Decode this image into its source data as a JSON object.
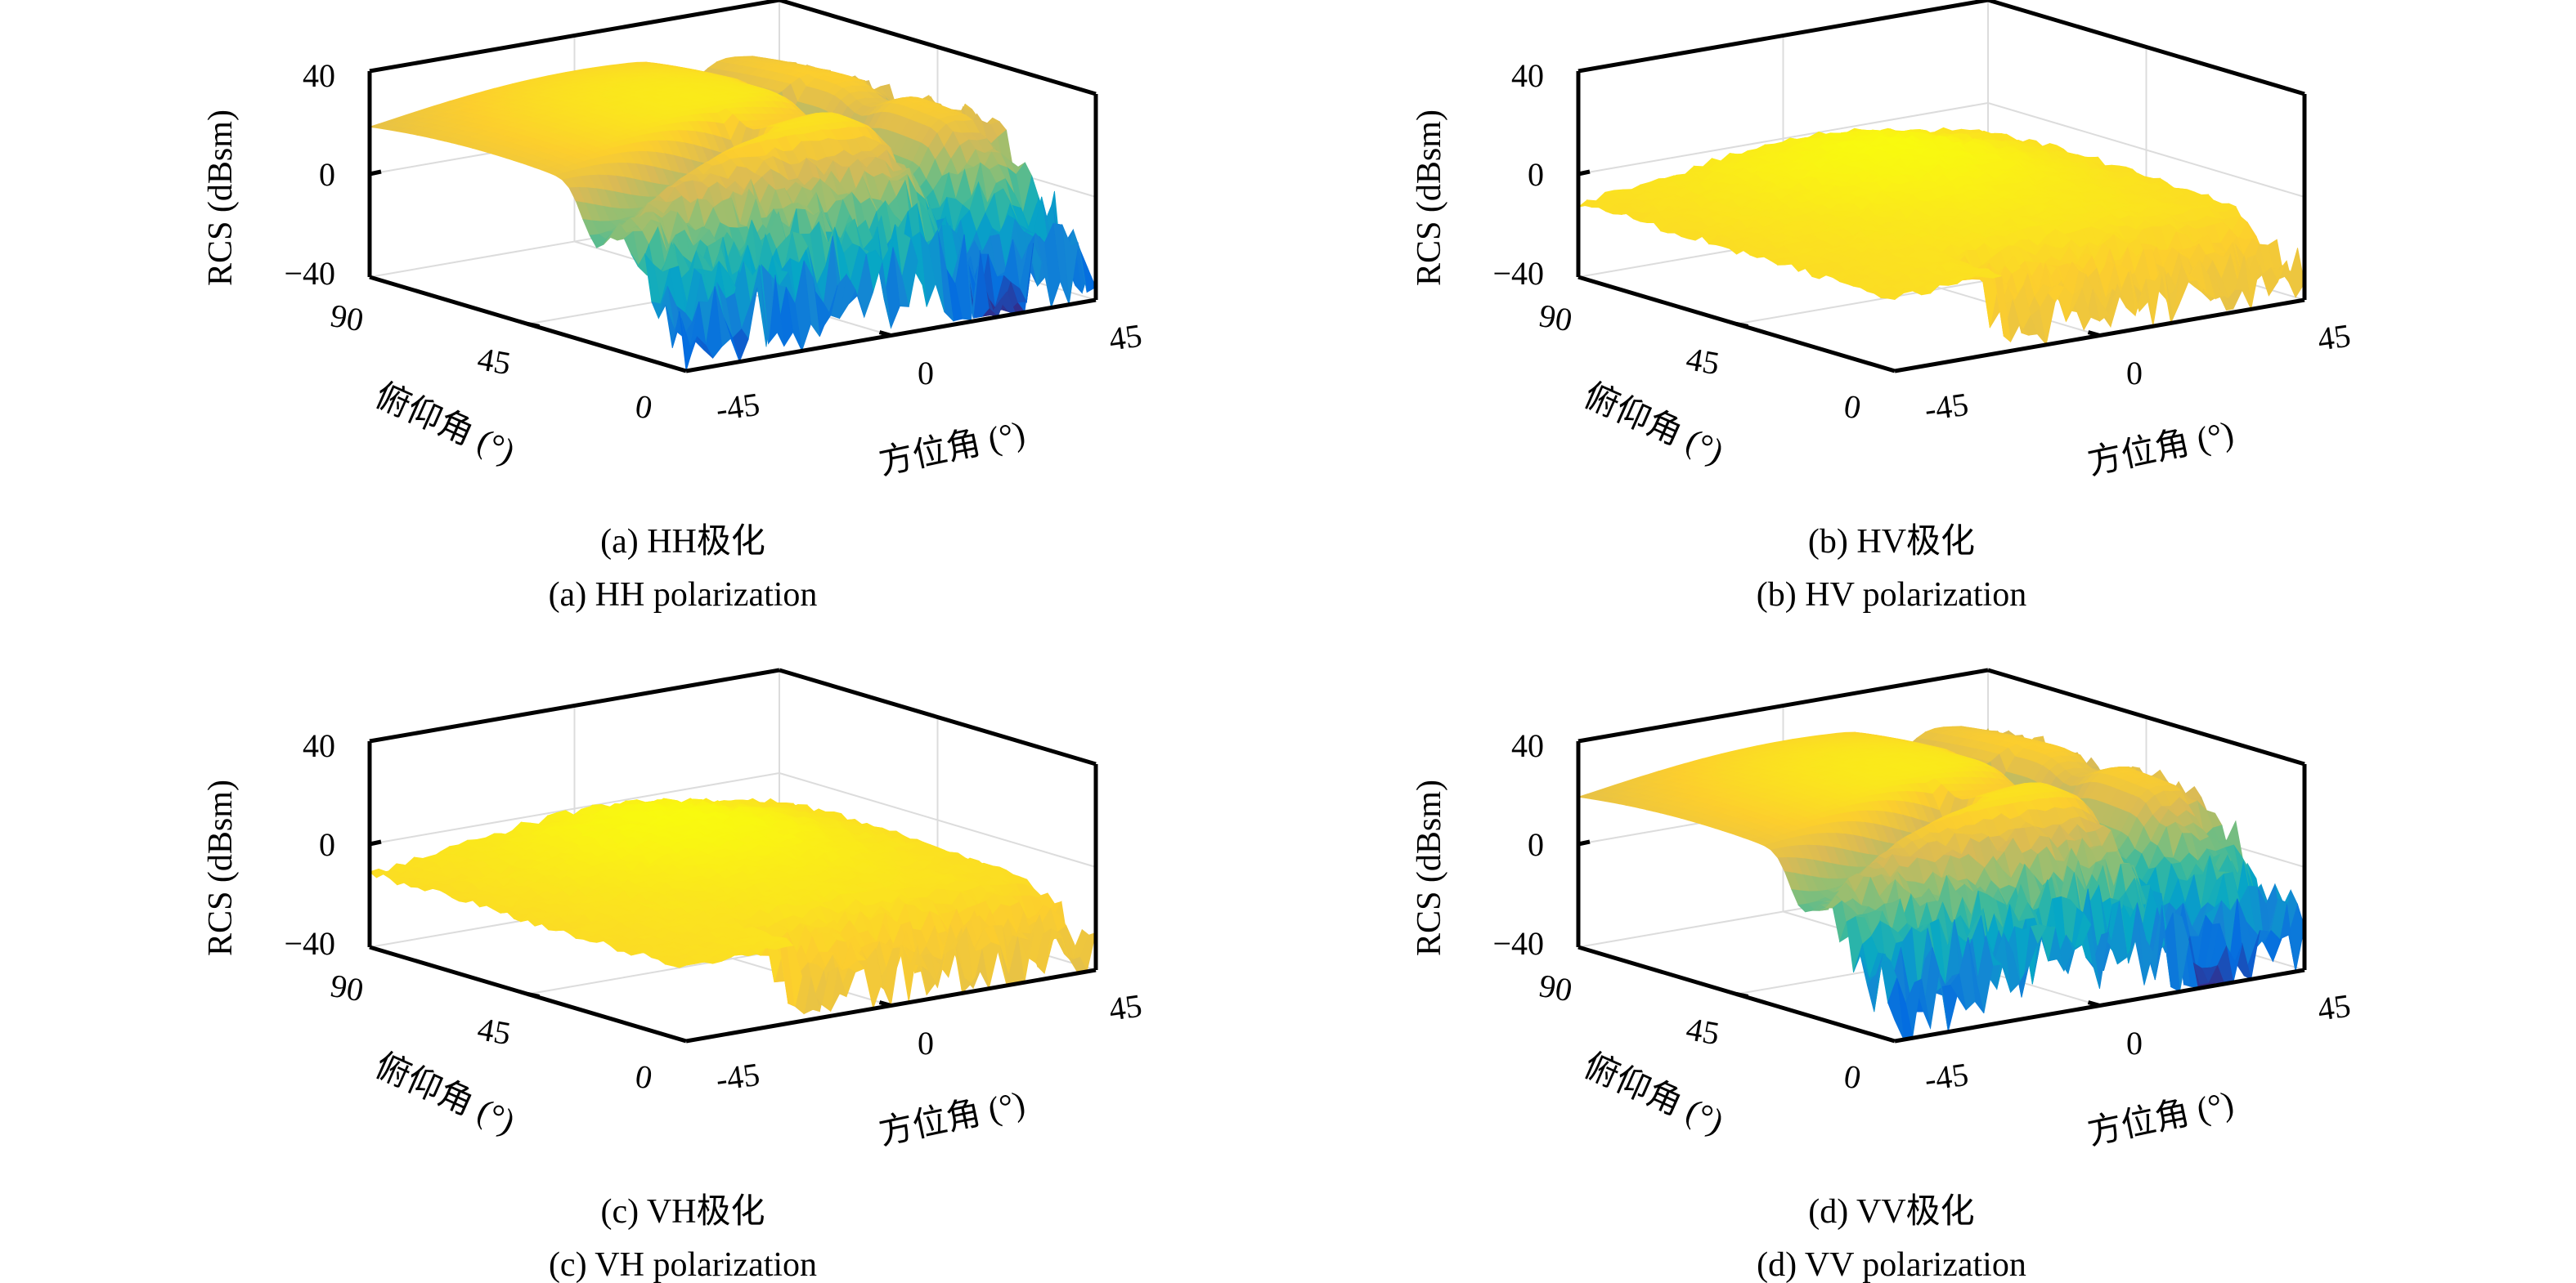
{
  "chart_data": [
    {
      "type": "surface",
      "caption_zh": "(a) HH极化",
      "caption_en": "(a) HH polarization",
      "xlabel": "方位角 (°)",
      "ylabel": "俯仰角 (°)",
      "zlabel": "RCS (dBsm)",
      "xlim": [
        -45,
        45
      ],
      "ylim": [
        0,
        90
      ],
      "zlim": [
        -40,
        40
      ],
      "xticks": [
        "-45",
        "0",
        "45"
      ],
      "yticks": [
        "0",
        "45",
        "90"
      ],
      "zticks": [
        "−40",
        "0",
        "40"
      ],
      "colormap": "parula",
      "grid": true,
      "value_range_dBsm": [
        -40,
        35
      ]
    },
    {
      "type": "surface",
      "caption_zh": "(b) HV极化",
      "caption_en": "(b) HV polarization",
      "xlabel": "方位角 (°)",
      "ylabel": "俯仰角 (°)",
      "zlabel": "RCS (dBsm)",
      "xlim": [
        -45,
        45
      ],
      "ylim": [
        0,
        90
      ],
      "zlim": [
        -40,
        40
      ],
      "xticks": [
        "-45",
        "0",
        "45"
      ],
      "yticks": [
        "0",
        "45",
        "90"
      ],
      "zticks": [
        "−40",
        "0",
        "40"
      ],
      "colormap": "parula",
      "grid": true,
      "value_range_dBsm": [
        -40,
        15
      ]
    },
    {
      "type": "surface",
      "caption_zh": "(c) VH极化",
      "caption_en": "(c) VH polarization",
      "xlabel": "方位角 (°)",
      "ylabel": "俯仰角 (°)",
      "zlabel": "RCS (dBsm)",
      "xlim": [
        -45,
        45
      ],
      "ylim": [
        0,
        90
      ],
      "zlim": [
        -40,
        40
      ],
      "xticks": [
        "-45",
        "0",
        "45"
      ],
      "yticks": [
        "0",
        "45",
        "90"
      ],
      "zticks": [
        "−40",
        "0",
        "40"
      ],
      "colormap": "parula",
      "grid": true,
      "value_range_dBsm": [
        -40,
        15
      ]
    },
    {
      "type": "surface",
      "caption_zh": "(d) VV极化",
      "caption_en": "(d) VV polarization",
      "xlabel": "方位角 (°)",
      "ylabel": "俯仰角 (°)",
      "zlabel": "RCS (dBsm)",
      "xlim": [
        -45,
        45
      ],
      "ylim": [
        0,
        90
      ],
      "zlim": [
        -40,
        40
      ],
      "xticks": [
        "-45",
        "0",
        "45"
      ],
      "yticks": [
        "0",
        "45",
        "90"
      ],
      "zticks": [
        "−40",
        "0",
        "40"
      ],
      "colormap": "parula",
      "grid": true,
      "value_range_dBsm": [
        -40,
        35
      ]
    }
  ]
}
